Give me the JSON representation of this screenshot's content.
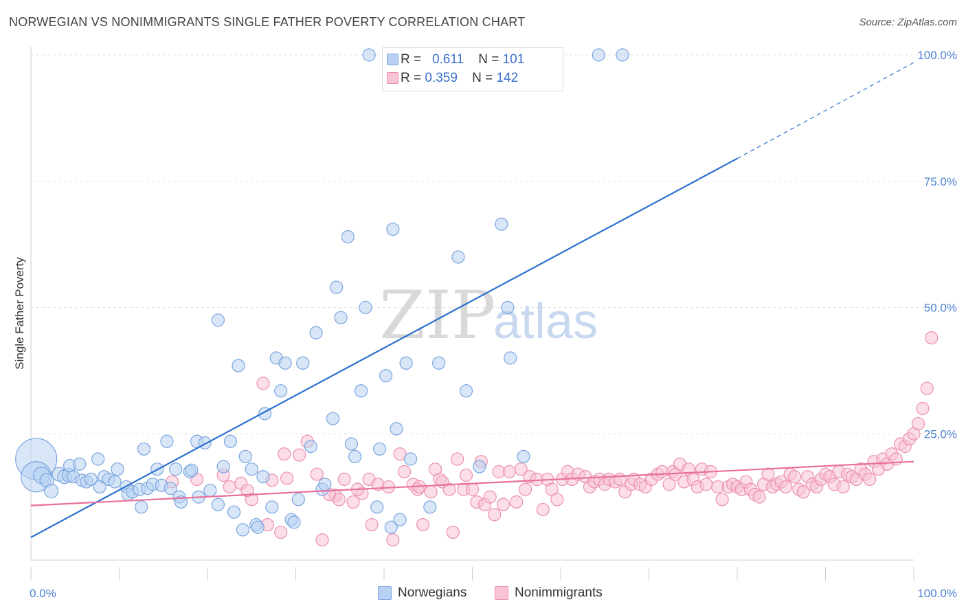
{
  "title": "NORWEGIAN VS NONIMMIGRANTS SINGLE FATHER POVERTY CORRELATION CHART",
  "source": "Source: ZipAtlas.com",
  "watermark": {
    "zip": "ZIP",
    "atlas": "atlas"
  },
  "legend": {
    "row1": {
      "r_label": "R =",
      "r_value": "0.611",
      "n_label": "N =",
      "n_value": "101"
    },
    "row2": {
      "r_label": "R =",
      "r_value": "0.359",
      "n_label": "N =",
      "n_value": "142"
    }
  },
  "bottom_legend": {
    "series1": "Norwegians",
    "series2": "Nonimmigrants"
  },
  "colors": {
    "norwegian_fill": "#b8d1f3",
    "norwegian_stroke": "#7aa5de",
    "norwegian_line": "#2b6fd0",
    "nonimm_fill": "#f8c3d3",
    "nonimm_stroke": "#ec8fae",
    "nonimm_line": "#e8709a",
    "axis_text": "#4a7fd0",
    "grid": "#e2e2e2"
  },
  "chart_data": {
    "type": "scatter",
    "xlabel": "",
    "ylabel": "Single Father Poverty",
    "xlim": [
      0,
      100
    ],
    "ylim": [
      0,
      100
    ],
    "x_tick_labels": [
      "0.0%",
      "100.0%"
    ],
    "y_tick_labels": [
      "25.0%",
      "50.0%",
      "75.0%",
      "100.0%"
    ],
    "y_ticks": [
      25,
      50,
      75,
      100
    ],
    "grid": true,
    "series": [
      {
        "name": "Norwegians",
        "r": 0.611,
        "n": 101,
        "trend": {
          "x0": 0,
          "y0": 4.5,
          "x1": 80,
          "y1": 79.5,
          "dashed_to": {
            "x": 100,
            "y": 98.5
          }
        },
        "points": [
          [
            0.6,
            20.0,
            30
          ],
          [
            0.6,
            16.5,
            22
          ],
          [
            1.2,
            16.8,
            12
          ],
          [
            1.8,
            15.8,
            10
          ],
          [
            2.3,
            13.7,
            10
          ],
          [
            3.2,
            17.0,
            10
          ],
          [
            3.8,
            16.5,
            10
          ],
          [
            4.3,
            16.8,
            10
          ],
          [
            4.4,
            18.7,
            9
          ],
          [
            4.8,
            16.5,
            9
          ],
          [
            5.5,
            19.0,
            9
          ],
          [
            5.8,
            15.8,
            9
          ],
          [
            6.3,
            15.5,
            9
          ],
          [
            6.8,
            16.0,
            9
          ],
          [
            7.6,
            20.0,
            9
          ],
          [
            7.8,
            14.5,
            9
          ],
          [
            8.3,
            16.5,
            9
          ],
          [
            8.8,
            16.0,
            9
          ],
          [
            9.5,
            15.5,
            9
          ],
          [
            9.8,
            18.0,
            9
          ],
          [
            10.8,
            14.5,
            9
          ],
          [
            11.0,
            13.0,
            9
          ],
          [
            11.5,
            13.5,
            9
          ],
          [
            12.3,
            14.0,
            9
          ],
          [
            12.5,
            10.5,
            9
          ],
          [
            12.8,
            22.0,
            9
          ],
          [
            13.2,
            14.2,
            9
          ],
          [
            13.8,
            15.0,
            9
          ],
          [
            14.3,
            18.0,
            9
          ],
          [
            14.8,
            14.8,
            9
          ],
          [
            15.4,
            23.5,
            9
          ],
          [
            15.8,
            14.2,
            9
          ],
          [
            16.4,
            18.0,
            9
          ],
          [
            16.8,
            12.5,
            9
          ],
          [
            17.0,
            11.5,
            9
          ],
          [
            18.0,
            17.5,
            9
          ],
          [
            18.2,
            17.8,
            9
          ],
          [
            18.8,
            23.5,
            9
          ],
          [
            19.0,
            12.5,
            9
          ],
          [
            19.7,
            23.2,
            9
          ],
          [
            20.3,
            13.8,
            9
          ],
          [
            21.2,
            47.5,
            9
          ],
          [
            21.2,
            11.0,
            9
          ],
          [
            21.8,
            18.5,
            9
          ],
          [
            22.6,
            23.5,
            9
          ],
          [
            23.0,
            9.5,
            9
          ],
          [
            23.5,
            38.5,
            9
          ],
          [
            24.0,
            6.0,
            9
          ],
          [
            24.3,
            20.5,
            9
          ],
          [
            25.0,
            18.0,
            9
          ],
          [
            25.5,
            7.0,
            9
          ],
          [
            25.7,
            6.5,
            9
          ],
          [
            26.3,
            16.5,
            9
          ],
          [
            26.5,
            29.0,
            9
          ],
          [
            27.3,
            10.5,
            9
          ],
          [
            27.8,
            40.0,
            9
          ],
          [
            28.3,
            33.5,
            9
          ],
          [
            28.8,
            39.0,
            9
          ],
          [
            29.5,
            8.0,
            9
          ],
          [
            29.8,
            7.5,
            9
          ],
          [
            30.3,
            12.0,
            9
          ],
          [
            30.8,
            39.0,
            9
          ],
          [
            31.7,
            22.5,
            9
          ],
          [
            32.3,
            45.0,
            9
          ],
          [
            33.0,
            14.0,
            9
          ],
          [
            33.3,
            15.0,
            9
          ],
          [
            34.2,
            28.0,
            9
          ],
          [
            34.6,
            54.0,
            9
          ],
          [
            35.1,
            48.0,
            9
          ],
          [
            35.9,
            64.0,
            9
          ],
          [
            36.3,
            23.0,
            9
          ],
          [
            36.7,
            20.5,
            9
          ],
          [
            37.4,
            33.5,
            9
          ],
          [
            37.9,
            50.0,
            9
          ],
          [
            38.3,
            100.0,
            9
          ],
          [
            39.2,
            10.5,
            9
          ],
          [
            39.5,
            22.0,
            9
          ],
          [
            40.2,
            36.5,
            9
          ],
          [
            40.8,
            6.5,
            9
          ],
          [
            41.0,
            65.5,
            9
          ],
          [
            41.4,
            26.0,
            9
          ],
          [
            41.8,
            8.0,
            9
          ],
          [
            42.5,
            39.0,
            9
          ],
          [
            43.0,
            20.0,
            9
          ],
          [
            45.2,
            10.5,
            9
          ],
          [
            46.2,
            39.0,
            9
          ],
          [
            47.3,
            100.0,
            9
          ],
          [
            48.4,
            60.0,
            9
          ],
          [
            49.0,
            100.0,
            9
          ],
          [
            49.3,
            33.5,
            9
          ],
          [
            50.3,
            100.0,
            9
          ],
          [
            50.8,
            18.5,
            9
          ],
          [
            53.3,
            66.5,
            9
          ],
          [
            54.0,
            50.0,
            9
          ],
          [
            54.3,
            40.0,
            9
          ],
          [
            55.8,
            20.5,
            9
          ],
          [
            64.3,
            100.0,
            9
          ],
          [
            67.0,
            100.0,
            9
          ]
        ]
      },
      {
        "name": "Nonimmigrants",
        "r": 0.359,
        "n": 142,
        "trend": {
          "x0": 0,
          "y0": 10.8,
          "x1": 100,
          "y1": 19.5
        },
        "points": [
          [
            21.8,
            16.8,
            9
          ],
          [
            23.8,
            15.2,
            9
          ],
          [
            25.0,
            12.0,
            9
          ],
          [
            26.3,
            35.0,
            9
          ],
          [
            26.8,
            7.0,
            9
          ],
          [
            27.3,
            15.8,
            9
          ],
          [
            28.3,
            5.5,
            9
          ],
          [
            28.7,
            21.0,
            9
          ],
          [
            29.0,
            16.2,
            9
          ],
          [
            30.4,
            20.8,
            9
          ],
          [
            31.3,
            23.5,
            9
          ],
          [
            32.4,
            17.0,
            9
          ],
          [
            33.0,
            4.0,
            9
          ],
          [
            34.5,
            12.8,
            9
          ],
          [
            34.9,
            12.0,
            9
          ],
          [
            35.5,
            16.0,
            9
          ],
          [
            36.5,
            11.5,
            9
          ],
          [
            37.5,
            13.2,
            9
          ],
          [
            38.3,
            16.0,
            9
          ],
          [
            38.6,
            7.0,
            9
          ],
          [
            39.3,
            15.0,
            9
          ],
          [
            40.5,
            14.5,
            9
          ],
          [
            41.0,
            4.0,
            9
          ],
          [
            41.8,
            21.0,
            9
          ],
          [
            42.3,
            17.5,
            9
          ],
          [
            43.3,
            15.0,
            9
          ],
          [
            43.8,
            14.0,
            9
          ],
          [
            44.4,
            7.0,
            9
          ],
          [
            45.3,
            13.5,
            9
          ],
          [
            45.8,
            18.0,
            9
          ],
          [
            46.3,
            16.0,
            9
          ],
          [
            46.6,
            15.5,
            9
          ],
          [
            47.4,
            14.0,
            9
          ],
          [
            47.8,
            5.5,
            9
          ],
          [
            48.3,
            20.0,
            9
          ],
          [
            49.0,
            14.0,
            9
          ],
          [
            49.3,
            16.8,
            9
          ],
          [
            50.0,
            14.0,
            9
          ],
          [
            50.5,
            11.5,
            9
          ],
          [
            51.0,
            19.5,
            9
          ],
          [
            51.4,
            11.0,
            9
          ],
          [
            52.0,
            12.5,
            9
          ],
          [
            52.5,
            9.0,
            9
          ],
          [
            53.0,
            17.5,
            9
          ],
          [
            53.5,
            11.0,
            9
          ],
          [
            54.2,
            17.5,
            9
          ],
          [
            55.0,
            11.5,
            9
          ],
          [
            55.5,
            18.0,
            9
          ],
          [
            56.0,
            14.0,
            9
          ],
          [
            56.5,
            16.5,
            9
          ],
          [
            57.3,
            16.0,
            9
          ],
          [
            58.0,
            10.0,
            9
          ],
          [
            58.5,
            16.0,
            9
          ],
          [
            59.0,
            14.0,
            9
          ],
          [
            59.6,
            12.0,
            9
          ],
          [
            60.2,
            16.0,
            9
          ],
          [
            60.8,
            17.5,
            9
          ],
          [
            61.3,
            16.0,
            9
          ],
          [
            62.0,
            17.0,
            9
          ],
          [
            62.8,
            16.5,
            9
          ],
          [
            63.3,
            14.5,
            9
          ],
          [
            63.8,
            15.5,
            9
          ],
          [
            64.4,
            16.0,
            9
          ],
          [
            65.0,
            15.0,
            9
          ],
          [
            65.5,
            16.0,
            9
          ],
          [
            66.2,
            15.5,
            9
          ],
          [
            66.7,
            16.0,
            9
          ],
          [
            67.3,
            13.5,
            9
          ],
          [
            68.0,
            15.0,
            9
          ],
          [
            68.3,
            16.0,
            9
          ],
          [
            69.0,
            15.0,
            9
          ],
          [
            69.6,
            14.5,
            9
          ],
          [
            70.3,
            16.0,
            9
          ],
          [
            71.0,
            17.0,
            9
          ],
          [
            71.5,
            17.5,
            9
          ],
          [
            72.3,
            15.0,
            9
          ],
          [
            72.7,
            17.5,
            9
          ],
          [
            73.0,
            17.0,
            9
          ],
          [
            73.5,
            19.0,
            9
          ],
          [
            74.0,
            15.5,
            9
          ],
          [
            74.5,
            18.0,
            9
          ],
          [
            75.0,
            16.0,
            9
          ],
          [
            75.5,
            14.5,
            9
          ],
          [
            76.0,
            18.0,
            9
          ],
          [
            76.5,
            15.0,
            9
          ],
          [
            77.0,
            17.5,
            9
          ],
          [
            77.8,
            14.5,
            9
          ],
          [
            78.3,
            12.0,
            9
          ],
          [
            79.0,
            14.5,
            9
          ],
          [
            79.5,
            15.0,
            9
          ],
          [
            80.0,
            14.5,
            9
          ],
          [
            80.5,
            14.0,
            9
          ],
          [
            81.0,
            15.5,
            9
          ],
          [
            81.5,
            14.0,
            9
          ],
          [
            82.0,
            13.0,
            9
          ],
          [
            82.5,
            12.5,
            9
          ],
          [
            83.0,
            15.0,
            9
          ],
          [
            83.5,
            17.0,
            9
          ],
          [
            84.0,
            14.5,
            9
          ],
          [
            84.5,
            15.0,
            9
          ],
          [
            85.0,
            15.5,
            9
          ],
          [
            85.5,
            14.5,
            9
          ],
          [
            86.0,
            17.0,
            9
          ],
          [
            86.5,
            16.5,
            9
          ],
          [
            87.0,
            14.0,
            9
          ],
          [
            87.5,
            13.5,
            9
          ],
          [
            88.0,
            16.5,
            9
          ],
          [
            88.5,
            15.0,
            9
          ],
          [
            89.0,
            14.5,
            9
          ],
          [
            89.5,
            16.0,
            9
          ],
          [
            90.0,
            17.0,
            9
          ],
          [
            90.5,
            16.5,
            9
          ],
          [
            91.0,
            15.0,
            9
          ],
          [
            91.5,
            17.5,
            9
          ],
          [
            92.0,
            14.5,
            9
          ],
          [
            92.5,
            17.0,
            9
          ],
          [
            93.0,
            16.5,
            9
          ],
          [
            93.5,
            16.0,
            9
          ],
          [
            94.0,
            18.0,
            9
          ],
          [
            94.5,
            17.0,
            9
          ],
          [
            95.0,
            16.0,
            9
          ],
          [
            95.5,
            19.5,
            9
          ],
          [
            96.0,
            18.0,
            9
          ],
          [
            96.5,
            20.0,
            9
          ],
          [
            97.0,
            19.0,
            9
          ],
          [
            97.5,
            21.0,
            9
          ],
          [
            98.0,
            20.0,
            9
          ],
          [
            98.5,
            23.0,
            9
          ],
          [
            99.0,
            22.5,
            9
          ],
          [
            99.5,
            24.0,
            9
          ],
          [
            100.0,
            25.0,
            9
          ],
          [
            100.5,
            27.0,
            9
          ],
          [
            101.0,
            30.0,
            9
          ],
          [
            101.5,
            34.0,
            9
          ],
          [
            102.0,
            44.0,
            9
          ],
          [
            16.0,
            15.5,
            9
          ],
          [
            18.8,
            16.0,
            9
          ],
          [
            22.5,
            14.5,
            9
          ],
          [
            24.5,
            13.8,
            9
          ],
          [
            33.8,
            13.0,
            9
          ],
          [
            37.0,
            14.0,
            9
          ],
          [
            44.0,
            14.5,
            9
          ]
        ]
      }
    ]
  }
}
